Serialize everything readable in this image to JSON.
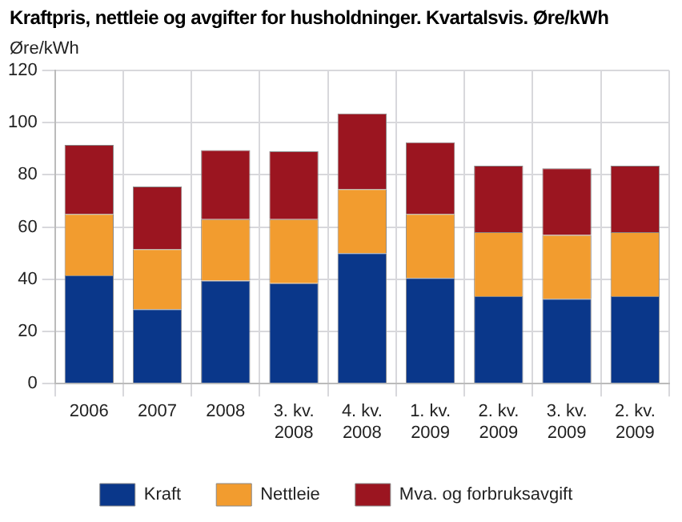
{
  "chart_data": {
    "type": "bar",
    "title": "Kraftpris, nettleie og avgifter for husholdninger. Kvartalsvis. Øre/kWh",
    "ylabel": "Øre/kWh",
    "categories": [
      "2006",
      "2007",
      "2008",
      "3. kv. 2008",
      "4. kv. 2008",
      "1. kv. 2009",
      "2. kv. 2009",
      "3. kv. 2009",
      "2. kv. 2009"
    ],
    "stacked": true,
    "series": [
      {
        "name": "Kraft",
        "color": "#0a378a",
        "values": [
          41.5,
          28.5,
          39.5,
          38.5,
          50,
          40.5,
          33.5,
          32.5,
          33.5
        ]
      },
      {
        "name": "Nettleie",
        "color": "#f29c2f",
        "values": [
          23.5,
          23,
          23.5,
          24.5,
          24.5,
          24.5,
          24.5,
          24.5,
          24.5
        ]
      },
      {
        "name": "Mva. og forbruksavgift",
        "color": "#9b1520",
        "values": [
          26.5,
          24,
          26.5,
          26,
          29,
          27.5,
          25.5,
          25.5,
          25.5
        ]
      }
    ],
    "ylim": [
      0,
      120
    ],
    "yticks": [
      0,
      20,
      40,
      60,
      80,
      100,
      120
    ],
    "grid": true,
    "legend": "bottom"
  }
}
